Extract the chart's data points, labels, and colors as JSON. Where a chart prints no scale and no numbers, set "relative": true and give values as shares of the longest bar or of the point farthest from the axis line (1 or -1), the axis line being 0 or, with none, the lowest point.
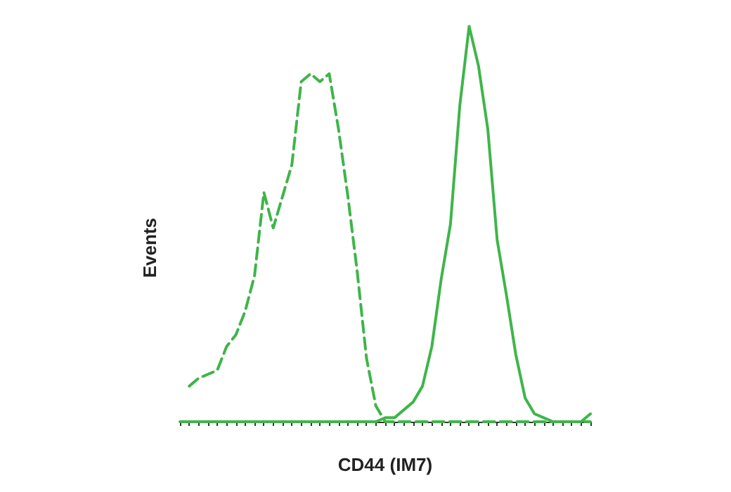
{
  "chart_data": {
    "type": "line",
    "xlabel": "CD44 (IM7)",
    "ylabel": "Events",
    "relative": true,
    "categories": [
      null,
      null,
      null,
      null,
      null,
      null,
      null,
      null,
      null,
      null,
      null,
      null,
      null,
      null,
      null,
      null,
      null,
      null,
      null,
      null,
      null,
      null,
      null,
      null,
      null,
      null,
      null,
      null,
      null,
      null,
      null,
      null,
      null,
      null,
      null,
      null,
      null,
      null,
      null,
      null,
      null,
      null,
      null,
      null,
      null
    ],
    "series": [
      {
        "color": "#3fb54a",
        "line_style": "dashed",
        "values": [
          null,
          0.09,
          0.11,
          0.12,
          0.13,
          0.19,
          0.22,
          0.28,
          0.37,
          0.58,
          0.49,
          0.57,
          0.65,
          0.86,
          0.88,
          0.86,
          0.88,
          0.74,
          0.57,
          0.38,
          0.16,
          0.04,
          0,
          0,
          0,
          0,
          0,
          0,
          0,
          0,
          0,
          0,
          0,
          0,
          0,
          0,
          0,
          0,
          0,
          0,
          0,
          0,
          0,
          0,
          0
        ]
      },
      {
        "color": "#3fb54a",
        "line_style": "solid",
        "values": [
          0,
          0,
          0,
          0,
          0,
          0,
          0,
          0,
          0,
          0,
          0,
          0,
          0,
          0,
          0,
          0,
          0,
          0,
          0,
          0,
          0,
          0,
          0.01,
          0.01,
          0.03,
          0.05,
          0.09,
          0.19,
          0.36,
          0.5,
          0.8,
          1,
          0.9,
          0.74,
          0.46,
          0.32,
          0.17,
          0.06,
          0.02,
          0.01,
          0,
          0,
          0,
          0,
          0.02
        ]
      }
    ]
  }
}
